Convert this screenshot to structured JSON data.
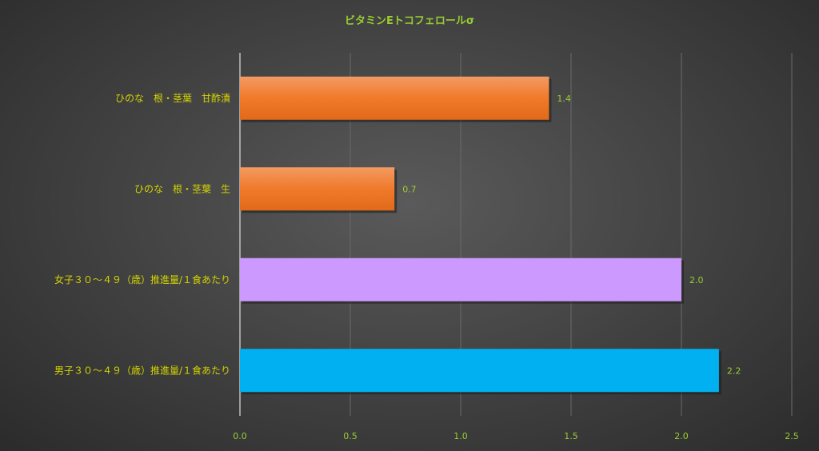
{
  "chart_data": {
    "type": "bar",
    "orientation": "horizontal",
    "title": "ビタミンEトコフェロールσ",
    "xlabel": "",
    "ylabel": "",
    "xlim": [
      0,
      2.5
    ],
    "x_ticks": [
      "0.0",
      "0.5",
      "1.0",
      "1.5",
      "2.0",
      "2.5"
    ],
    "grid": true,
    "legend": "none",
    "categories": [
      "ひのな　根・茎葉　甘酢漬",
      "ひのな　根・茎葉　生",
      "女子３０～４９（歳）推進量/１食あたり",
      "男子３０～４９（歳）推進量/１食あたり"
    ],
    "values": [
      1.4,
      0.7,
      2.0,
      2.17
    ],
    "data_labels": [
      "1.4",
      "0.7",
      "2.0",
      "2.2"
    ],
    "colors": [
      "#f07a2a",
      "#f07a2a",
      "#cc99ff",
      "#00b0f0"
    ]
  }
}
